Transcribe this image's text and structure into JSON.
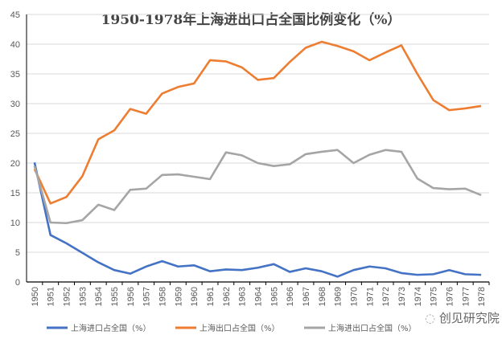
{
  "chart_data": {
    "type": "line",
    "title": "1950-1978年上海进出口占全国比例变化（%）",
    "xlabel": "",
    "ylabel": "",
    "ylim": [
      0,
      45
    ],
    "yticks": [
      0,
      5,
      10,
      15,
      20,
      25,
      30,
      35,
      40,
      45
    ],
    "grid": true,
    "legend_position": "bottom",
    "categories": [
      "1950",
      "1951",
      "1952",
      "1953",
      "1954",
      "1955",
      "1956",
      "1957",
      "1958",
      "1959",
      "1960",
      "1961",
      "1962",
      "1963",
      "1964",
      "1965",
      "1966",
      "1967",
      "1968",
      "1969",
      "1970",
      "1971",
      "1972",
      "1973",
      "1974",
      "1975",
      "1976",
      "1977",
      "1978"
    ],
    "series": [
      {
        "name": "上海进口占全国（%）",
        "color": "#4472C4",
        "values": [
          20.1,
          7.9,
          6.5,
          4.9,
          3.3,
          2.0,
          1.4,
          2.6,
          3.5,
          2.6,
          2.8,
          1.8,
          2.1,
          2.0,
          2.4,
          3.0,
          1.7,
          2.3,
          1.8,
          0.9,
          2.0,
          2.6,
          2.3,
          1.5,
          1.2,
          1.3,
          2.0,
          1.3,
          1.2
        ]
      },
      {
        "name": "上海出口占全国（%）",
        "color": "#ED7D31",
        "values": [
          19.0,
          13.2,
          14.3,
          17.8,
          24.0,
          25.5,
          29.1,
          28.3,
          31.7,
          32.8,
          33.4,
          37.3,
          37.1,
          36.1,
          34.0,
          34.3,
          37.0,
          39.4,
          40.4,
          39.7,
          38.8,
          37.3,
          38.6,
          39.8,
          35.0,
          30.6,
          28.9,
          29.2,
          29.6
        ]
      },
      {
        "name": "上海进出口占全国（%）",
        "color": "#A5A5A5",
        "values": [
          19.5,
          10.0,
          9.9,
          10.4,
          13.0,
          12.1,
          15.5,
          15.7,
          18.0,
          18.1,
          17.7,
          17.3,
          21.8,
          21.3,
          20.0,
          19.5,
          19.8,
          21.5,
          21.9,
          22.2,
          20.0,
          21.4,
          22.2,
          21.9,
          17.4,
          15.8,
          15.6,
          15.7,
          14.6
        ]
      }
    ]
  },
  "watermark": "创见研究院"
}
